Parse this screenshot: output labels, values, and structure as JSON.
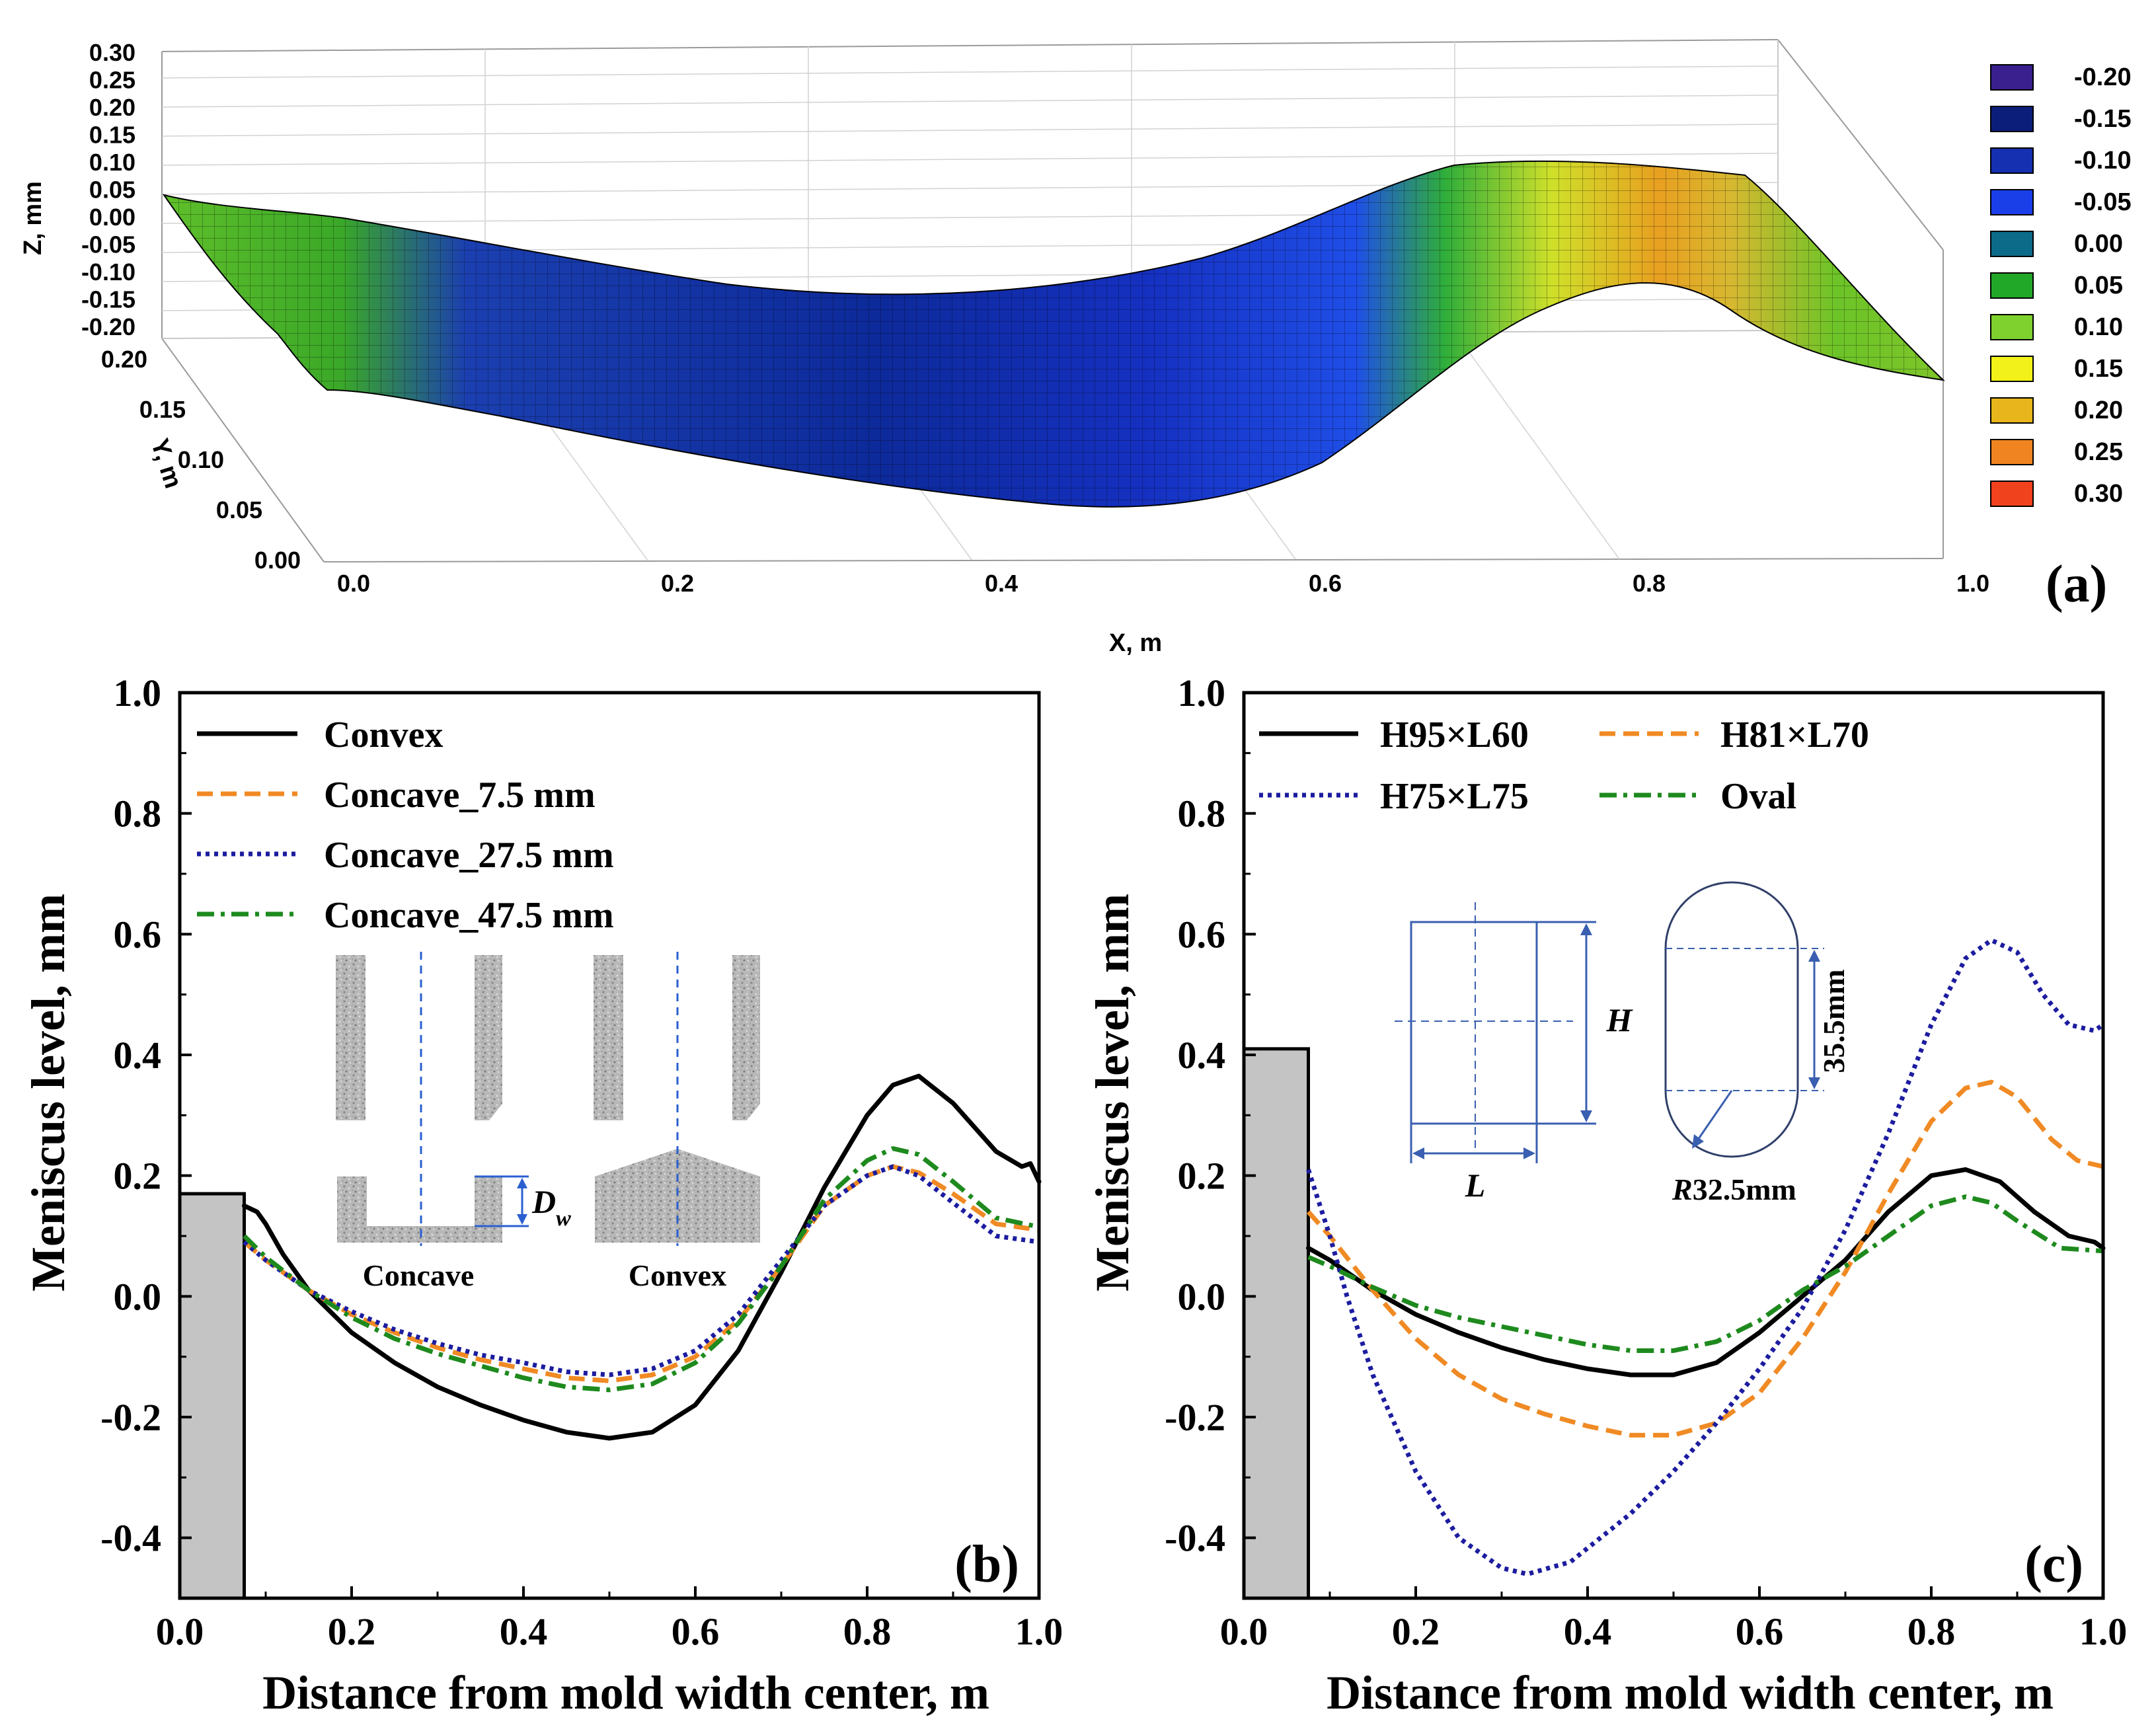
{
  "panel_a": {
    "label": "(a)",
    "xlabel": "X, m",
    "ylabel": "Y, m",
    "zlabel": "Z, mm",
    "x_ticks": [
      "0.0",
      "0.2",
      "0.4",
      "0.6",
      "0.8",
      "1.0"
    ],
    "y_ticks": [
      "0.00",
      "0.05",
      "0.10",
      "0.15",
      "0.20"
    ],
    "z_ticks": [
      "0.30",
      "0.25",
      "0.20",
      "0.15",
      "0.10",
      "0.05",
      "0.00",
      "-0.05",
      "-0.10",
      "-0.15",
      "-0.20"
    ],
    "colorbar": [
      {
        "label": "-0.20",
        "color": "#3a1f8f"
      },
      {
        "label": "-0.15",
        "color": "#0b1f7a"
      },
      {
        "label": "-0.10",
        "color": "#1530b0"
      },
      {
        "label": "-0.05",
        "color": "#1a3fe8"
      },
      {
        "label": "0.00",
        "color": "#0d6b8a"
      },
      {
        "label": "0.05",
        "color": "#22a829"
      },
      {
        "label": "0.10",
        "color": "#7fd12e"
      },
      {
        "label": "0.15",
        "color": "#f2f21a"
      },
      {
        "label": "0.20",
        "color": "#e8b61c"
      },
      {
        "label": "0.25",
        "color": "#f08420"
      },
      {
        "label": "0.30",
        "color": "#f0421c"
      }
    ]
  },
  "chart_data": [
    {
      "type": "line",
      "id": "b",
      "panel_label": "(b)",
      "title": "",
      "xlabel": "Distance from mold width center, m",
      "ylabel": "Meniscus level, mm",
      "xlim": [
        0,
        1.0
      ],
      "ylim": [
        -0.5,
        1.0
      ],
      "x_ticks": [
        "0.0",
        "0.2",
        "0.4",
        "0.6",
        "0.8",
        "1.0"
      ],
      "y_ticks": [
        "1.0",
        "0.8",
        "0.6",
        "0.4",
        "0.2",
        "0.0",
        "-0.2",
        "-0.4"
      ],
      "nozzle_bar": {
        "x_end": 0.075,
        "top": 0.17
      },
      "series": [
        {
          "name": "Convex",
          "color": "#000000",
          "dash": "solid",
          "x": [
            0.075,
            0.09,
            0.1,
            0.12,
            0.15,
            0.2,
            0.25,
            0.3,
            0.35,
            0.4,
            0.45,
            0.5,
            0.55,
            0.6,
            0.65,
            0.7,
            0.75,
            0.8,
            0.83,
            0.86,
            0.9,
            0.95,
            0.98,
            0.99,
            1.0
          ],
          "y": [
            0.15,
            0.14,
            0.12,
            0.07,
            0.01,
            -0.06,
            -0.11,
            -0.15,
            -0.18,
            -0.205,
            -0.225,
            -0.235,
            -0.225,
            -0.18,
            -0.09,
            0.04,
            0.18,
            0.3,
            0.35,
            0.365,
            0.32,
            0.24,
            0.215,
            0.22,
            0.19
          ]
        },
        {
          "name": "Concave_7.5 mm",
          "color": "#f08a24",
          "dash": "24,12",
          "x": [
            0.075,
            0.1,
            0.15,
            0.2,
            0.25,
            0.3,
            0.35,
            0.4,
            0.45,
            0.5,
            0.55,
            0.6,
            0.65,
            0.7,
            0.75,
            0.8,
            0.83,
            0.86,
            0.9,
            0.95,
            1.0
          ],
          "y": [
            0.09,
            0.06,
            0.01,
            -0.03,
            -0.06,
            -0.085,
            -0.105,
            -0.12,
            -0.135,
            -0.14,
            -0.13,
            -0.1,
            -0.04,
            0.05,
            0.15,
            0.2,
            0.215,
            0.205,
            0.17,
            0.12,
            0.11
          ]
        },
        {
          "name": "Concave_27.5 mm",
          "color": "#1c1ca0",
          "dash": "6,7",
          "x": [
            0.075,
            0.1,
            0.15,
            0.2,
            0.25,
            0.3,
            0.35,
            0.4,
            0.45,
            0.5,
            0.55,
            0.6,
            0.65,
            0.7,
            0.75,
            0.8,
            0.83,
            0.86,
            0.9,
            0.95,
            1.0
          ],
          "y": [
            0.09,
            0.06,
            0.01,
            -0.025,
            -0.055,
            -0.078,
            -0.097,
            -0.11,
            -0.125,
            -0.13,
            -0.12,
            -0.09,
            -0.03,
            0.06,
            0.15,
            0.2,
            0.215,
            0.2,
            0.155,
            0.1,
            0.09
          ]
        },
        {
          "name": "Concave_47.5 mm",
          "color": "#1e8a1e",
          "dash": "26,10,6,10",
          "x": [
            0.075,
            0.1,
            0.15,
            0.2,
            0.25,
            0.3,
            0.35,
            0.4,
            0.45,
            0.5,
            0.55,
            0.6,
            0.65,
            0.7,
            0.75,
            0.8,
            0.83,
            0.86,
            0.9,
            0.95,
            1.0
          ],
          "y": [
            0.1,
            0.065,
            0.01,
            -0.035,
            -0.07,
            -0.095,
            -0.115,
            -0.135,
            -0.15,
            -0.155,
            -0.145,
            -0.11,
            -0.045,
            0.05,
            0.16,
            0.225,
            0.245,
            0.235,
            0.19,
            0.13,
            0.115
          ]
        }
      ]
    },
    {
      "type": "line",
      "id": "c",
      "panel_label": "(c)",
      "title": "",
      "xlabel": "Distance from mold width center, m",
      "ylabel": "Meniscus level, mm",
      "xlim": [
        0,
        1.0
      ],
      "ylim": [
        -0.5,
        1.0
      ],
      "x_ticks": [
        "0.0",
        "0.2",
        "0.4",
        "0.6",
        "0.8",
        "1.0"
      ],
      "y_ticks": [
        "1.0",
        "0.8",
        "0.6",
        "0.4",
        "0.2",
        "0.0",
        "-0.2",
        "-0.4"
      ],
      "nozzle_bar": {
        "x_end": 0.075,
        "top": 0.41
      },
      "series": [
        {
          "name": "H95×L60",
          "color": "#000000",
          "dash": "solid",
          "x": [
            0.075,
            0.1,
            0.15,
            0.2,
            0.25,
            0.3,
            0.35,
            0.4,
            0.45,
            0.5,
            0.55,
            0.6,
            0.65,
            0.7,
            0.75,
            0.8,
            0.84,
            0.88,
            0.92,
            0.96,
            0.99,
            1.0
          ],
          "y": [
            0.08,
            0.06,
            0.01,
            -0.03,
            -0.06,
            -0.085,
            -0.105,
            -0.12,
            -0.13,
            -0.13,
            -0.11,
            -0.06,
            0.0,
            0.06,
            0.14,
            0.2,
            0.21,
            0.19,
            0.14,
            0.1,
            0.09,
            0.08
          ]
        },
        {
          "name": "H81×L70",
          "color": "#f08a24",
          "dash": "24,12",
          "x": [
            0.075,
            0.1,
            0.15,
            0.2,
            0.25,
            0.3,
            0.35,
            0.4,
            0.45,
            0.5,
            0.55,
            0.6,
            0.65,
            0.7,
            0.75,
            0.8,
            0.84,
            0.87,
            0.9,
            0.94,
            0.97,
            1.0
          ],
          "y": [
            0.14,
            0.1,
            0.01,
            -0.07,
            -0.13,
            -0.17,
            -0.195,
            -0.215,
            -0.23,
            -0.23,
            -0.21,
            -0.16,
            -0.07,
            0.04,
            0.17,
            0.29,
            0.345,
            0.355,
            0.33,
            0.26,
            0.225,
            0.215
          ]
        },
        {
          "name": "H75×L75",
          "color": "#1c1ca0",
          "dash": "6,7",
          "x": [
            0.075,
            0.1,
            0.12,
            0.15,
            0.2,
            0.25,
            0.3,
            0.33,
            0.38,
            0.45,
            0.5,
            0.55,
            0.6,
            0.65,
            0.7,
            0.75,
            0.8,
            0.84,
            0.87,
            0.9,
            0.93,
            0.96,
            0.99,
            1.0
          ],
          "y": [
            0.21,
            0.1,
            0.0,
            -0.13,
            -0.29,
            -0.4,
            -0.45,
            -0.46,
            -0.44,
            -0.36,
            -0.29,
            -0.21,
            -0.12,
            -0.02,
            0.11,
            0.27,
            0.45,
            0.56,
            0.59,
            0.57,
            0.5,
            0.45,
            0.44,
            0.45
          ]
        },
        {
          "name": "Oval",
          "color": "#1e8a1e",
          "dash": "26,10,6,10",
          "x": [
            0.075,
            0.1,
            0.15,
            0.2,
            0.25,
            0.3,
            0.35,
            0.4,
            0.45,
            0.5,
            0.55,
            0.6,
            0.65,
            0.7,
            0.75,
            0.8,
            0.84,
            0.87,
            0.9,
            0.95,
            1.0
          ],
          "y": [
            0.065,
            0.05,
            0.015,
            -0.015,
            -0.035,
            -0.05,
            -0.065,
            -0.08,
            -0.09,
            -0.09,
            -0.075,
            -0.04,
            0.01,
            0.05,
            0.1,
            0.15,
            0.165,
            0.155,
            0.125,
            0.08,
            0.075
          ]
        }
      ]
    }
  ],
  "inset_b": {
    "concave_label": "Concave",
    "convex_label": "Convex",
    "dim_label": "D",
    "dim_sub": "w"
  },
  "inset_c": {
    "H_label": "H",
    "L_label": "L",
    "dim_label": "35.5mm",
    "radius_italic": "R",
    "radius_value": "32.5mm"
  }
}
